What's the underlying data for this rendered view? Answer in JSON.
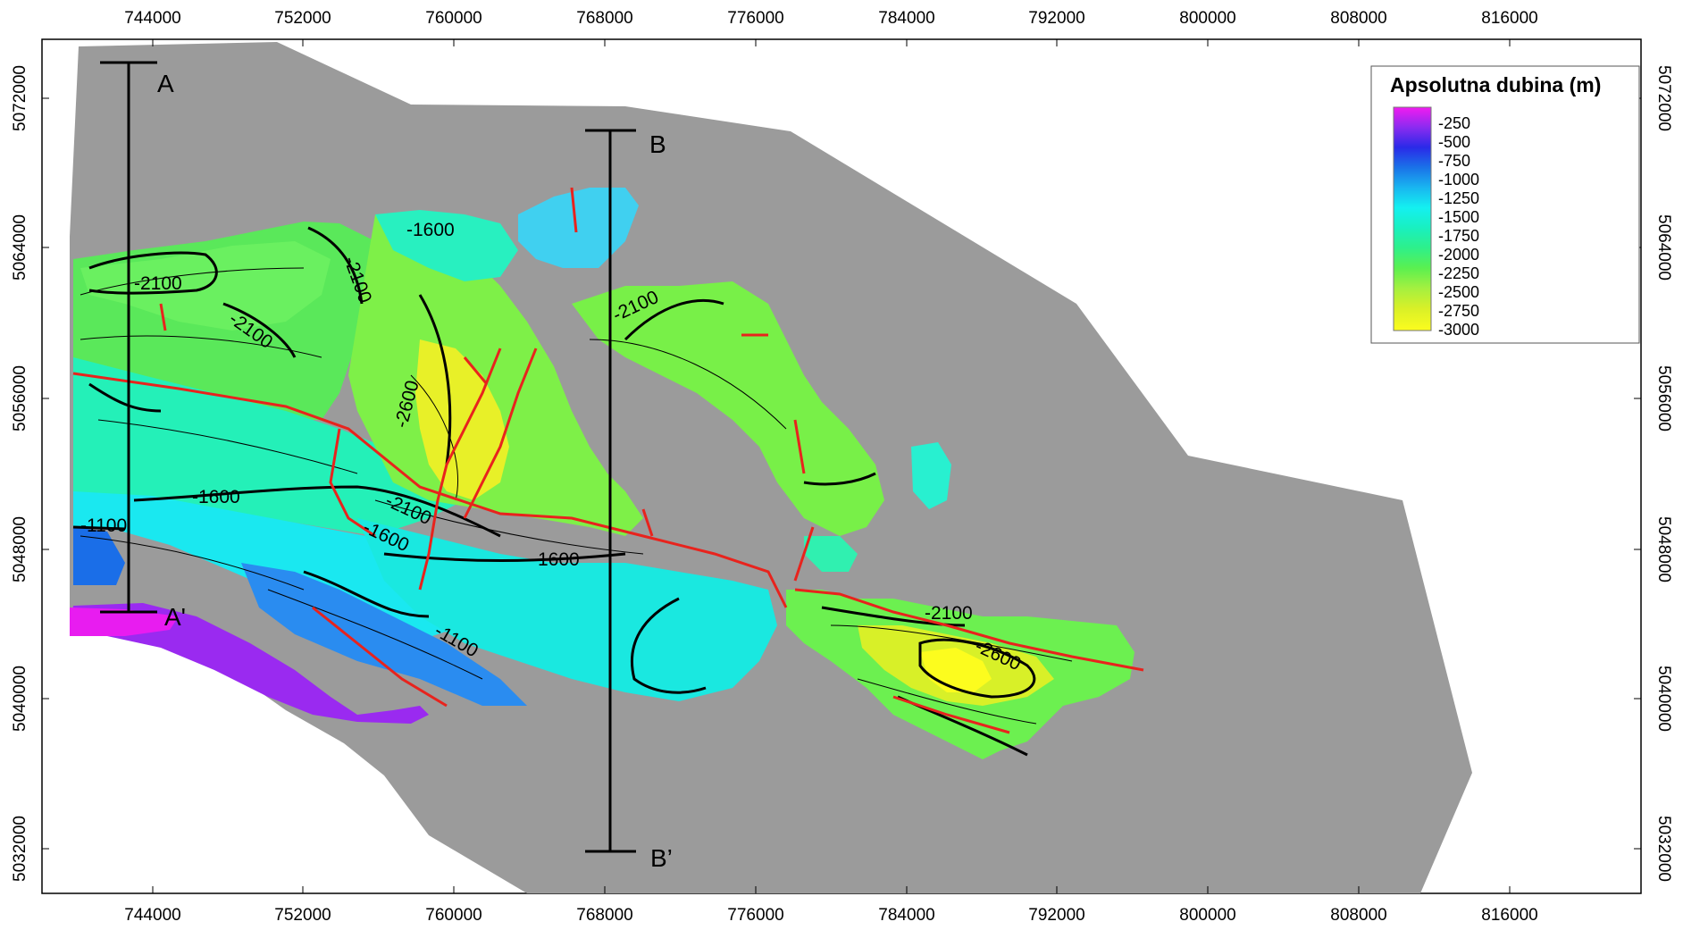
{
  "colors": {
    "background_grey": "#9b9b9b",
    "fault": "#e8231d",
    "contour": "#000000"
  },
  "axes": {
    "x_ticks": [
      "744000",
      "752000",
      "760000",
      "768000",
      "776000",
      "784000",
      "792000",
      "800000",
      "808000",
      "816000"
    ],
    "y_ticks": [
      "5072000",
      "5064000",
      "5056000",
      "5048000",
      "5040000",
      "5032000"
    ]
  },
  "legend": {
    "title": "Apsolutna dubina (m)",
    "labels": [
      "-250",
      "-500",
      "-750",
      "-1000",
      "-1250",
      "-1500",
      "-1750",
      "-2000",
      "-2250",
      "-2500",
      "-2750",
      "-3000"
    ],
    "gradient_colors": [
      "#f21bf0",
      "#8b2bf0",
      "#2a2ae8",
      "#1a72e8",
      "#19b6f0",
      "#14f0f0",
      "#19f0c0",
      "#2ef08a",
      "#5af050",
      "#a4f040",
      "#d8f028",
      "#fcfc1e"
    ]
  },
  "contour_labels": [
    "-2100",
    "-2100",
    "-2100",
    "-1600",
    "-2100",
    "-2600",
    "-2100",
    "-1600",
    "-1100",
    "-1600",
    "-1600",
    "-1100",
    "-2100",
    "-2600"
  ],
  "sections": {
    "a_start": "A",
    "a_end": "A'",
    "b_start": "B",
    "b_end": "B’"
  }
}
